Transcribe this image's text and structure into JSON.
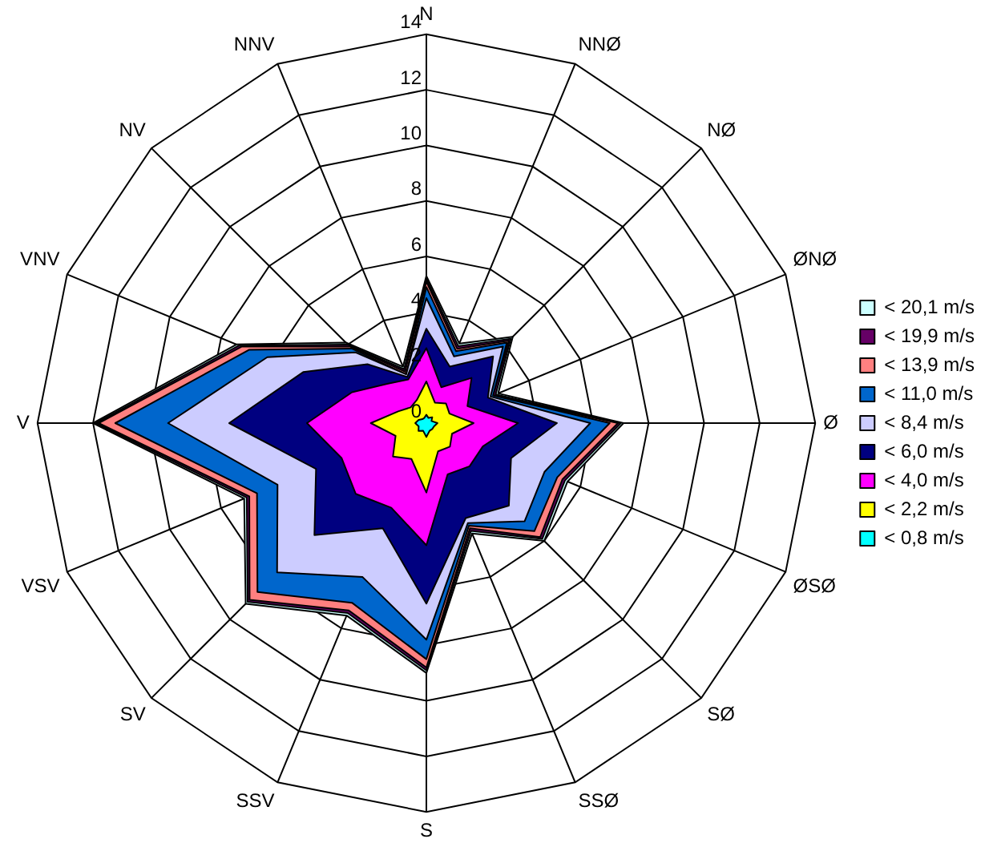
{
  "chart_data": {
    "type": "radar",
    "categories": [
      "N",
      "NNØ",
      "NØ",
      "ØNØ",
      "Ø",
      "ØSØ",
      "SØ",
      "SSØ",
      "S",
      "SSV",
      "SV",
      "VSV",
      "V",
      "VNV",
      "NV",
      "NNV"
    ],
    "ylim": [
      0,
      14
    ],
    "yticks": [
      0,
      2,
      4,
      6,
      8,
      10,
      12,
      14
    ],
    "grid": true,
    "legend": "right",
    "marker": "none",
    "series": [
      {
        "name": "< 20,1 m/s",
        "color": "#ccffff",
        "values": [
          5.3,
          3.1,
          4.4,
          2.8,
          7.1,
          5.5,
          6.0,
          4.3,
          9.0,
          7.5,
          9.2,
          7.1,
          12.0,
          7.4,
          4.1,
          2.2
        ]
      },
      {
        "name": "< 19,9 m/s",
        "color": "#660066",
        "values": [
          5.2,
          3.0,
          4.3,
          2.7,
          7.0,
          5.4,
          5.9,
          4.2,
          8.9,
          7.4,
          9.1,
          7.0,
          11.9,
          7.3,
          4.0,
          2.1
        ]
      },
      {
        "name": "< 13,9 m/s",
        "color": "#ff8080",
        "values": [
          5.1,
          2.9,
          4.2,
          2.6,
          6.9,
          5.3,
          5.8,
          4.1,
          8.8,
          7.3,
          9.0,
          6.9,
          11.8,
          7.2,
          3.9,
          2.0
        ]
      },
      {
        "name": "< 11,0 m/s",
        "color": "#0066cc",
        "values": [
          4.9,
          2.8,
          4.1,
          2.6,
          6.6,
          5.1,
          5.5,
          4.0,
          8.5,
          7.0,
          8.6,
          6.6,
          11.2,
          6.9,
          3.8,
          1.9
        ]
      },
      {
        "name": "< 8,4 m/s",
        "color": "#ccccff",
        "values": [
          4.5,
          2.6,
          3.9,
          2.5,
          5.9,
          4.6,
          5.0,
          3.9,
          7.8,
          6.0,
          7.6,
          5.8,
          9.3,
          6.2,
          3.6,
          1.9
        ]
      },
      {
        "name": "< 6,0 m/s",
        "color": "#000080",
        "values": [
          3.4,
          2.2,
          3.4,
          2.4,
          4.7,
          3.3,
          4.2,
          3.7,
          6.5,
          4.1,
          5.7,
          4.3,
          7.1,
          4.8,
          3.0,
          1.8
        ]
      },
      {
        "name": "< 4,0 m/s",
        "color": "#ff00ff",
        "values": [
          2.7,
          1.4,
          2.3,
          1.6,
          3.3,
          2.2,
          2.2,
          2.0,
          4.4,
          3.3,
          3.6,
          3.3,
          4.3,
          2.9,
          2.0,
          1.7
        ]
      },
      {
        "name": "< 2,2 m/s",
        "color": "#ffff00",
        "values": [
          1.5,
          0.8,
          1.0,
          0.9,
          1.7,
          1.0,
          1.2,
          1.1,
          2.5,
          1.4,
          1.7,
          1.2,
          2.0,
          1.1,
          0.8,
          0.9
        ]
      },
      {
        "name": "< 0,8 m/s",
        "color": "#00ffff",
        "values": [
          0.3,
          0.2,
          0.3,
          0.2,
          0.4,
          0.3,
          0.3,
          0.3,
          0.5,
          0.3,
          0.4,
          0.3,
          0.4,
          0.3,
          0.2,
          0.2
        ]
      }
    ]
  }
}
